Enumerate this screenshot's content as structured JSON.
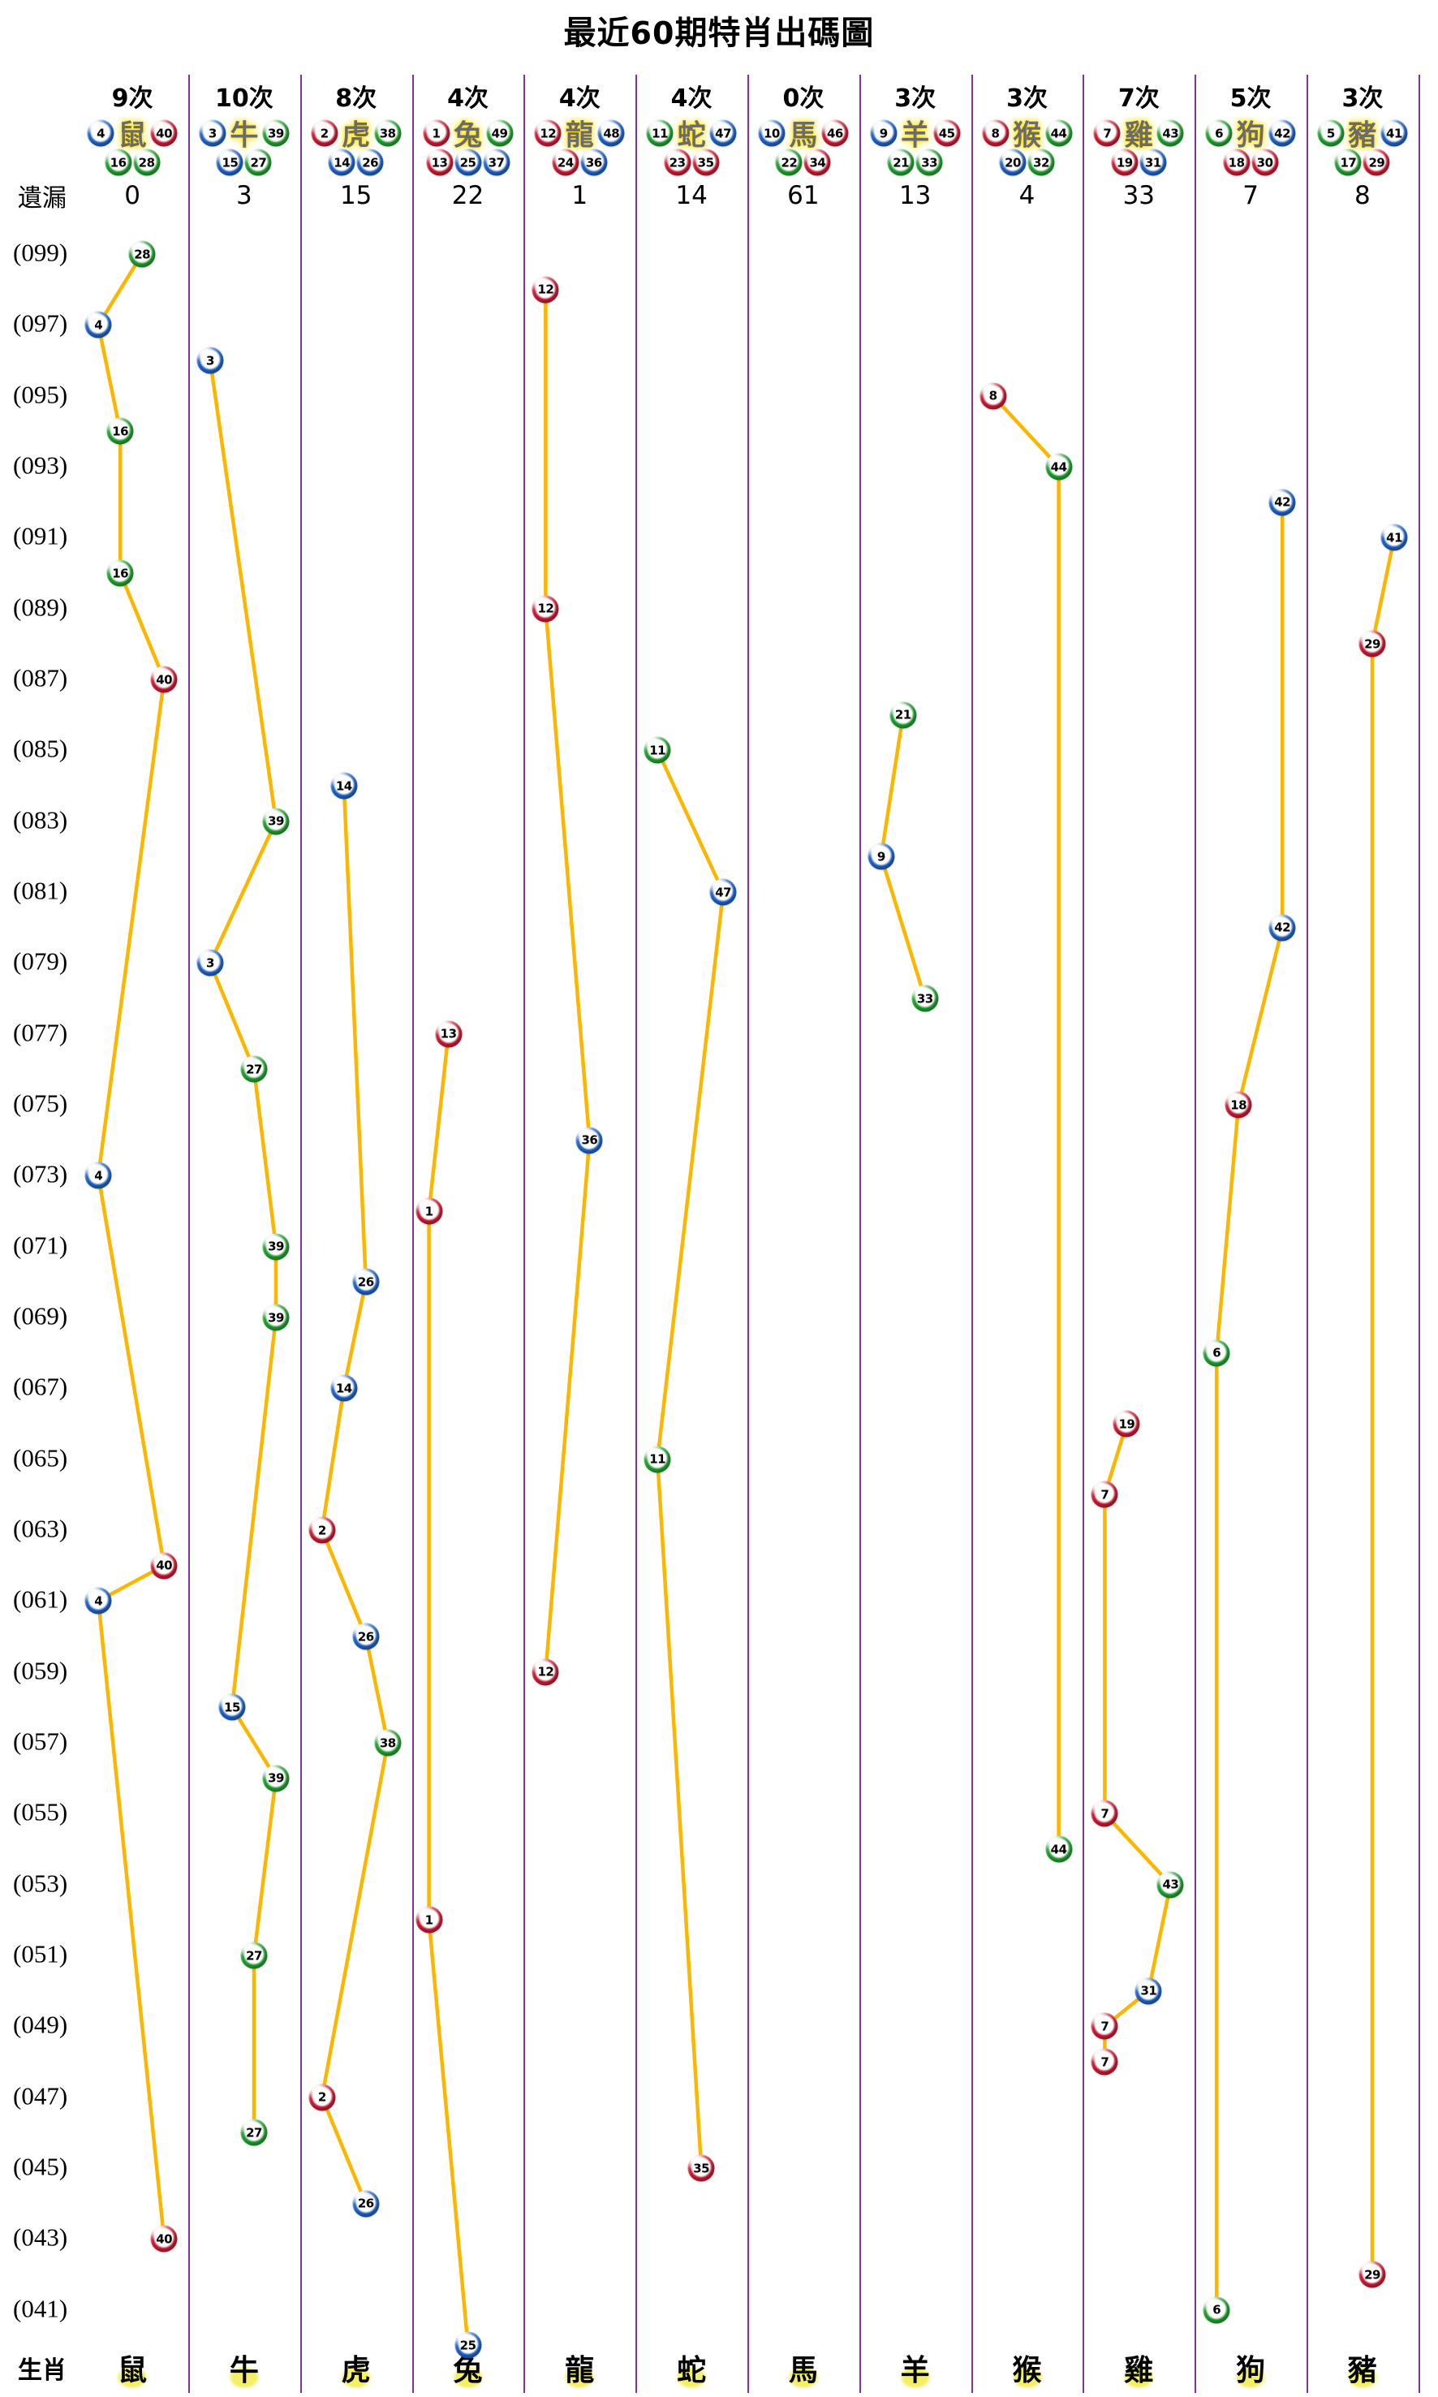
{
  "title": {
    "prefix": "最近",
    "num": "60",
    "suffix": "期特肖出碼圖"
  },
  "gutter": {
    "missed_label": "遺漏",
    "zodiac_label": "生肖"
  },
  "row_labels": [
    "(099)",
    "(097)",
    "(095)",
    "(093)",
    "(091)",
    "(089)",
    "(087)",
    "(085)",
    "(083)",
    "(081)",
    "(079)",
    "(077)",
    "(075)",
    "(073)",
    "(071)",
    "(069)",
    "(067)",
    "(065)",
    "(063)",
    "(061)",
    "(059)",
    "(057)",
    "(055)",
    "(053)",
    "(051)",
    "(049)",
    "(047)",
    "(045)",
    "(043)",
    "(041)"
  ],
  "colors": {
    "line": "#FBB600",
    "separator": "#7B35A0",
    "red": "#CC1A33",
    "blue": "#1E63C8",
    "green": "#1FA12E",
    "red_numbers": [
      1,
      2,
      7,
      8,
      12,
      13,
      18,
      19,
      23,
      24,
      29,
      30,
      34,
      35,
      40,
      45,
      46
    ],
    "blue_numbers": [
      3,
      4,
      9,
      10,
      14,
      15,
      20,
      25,
      26,
      31,
      36,
      37,
      41,
      42,
      47,
      48
    ],
    "green_numbers": [
      5,
      6,
      11,
      16,
      17,
      21,
      22,
      27,
      28,
      32,
      33,
      38,
      39,
      43,
      44,
      49
    ]
  },
  "chart_data": {
    "type": "line",
    "title": "最近60期特肖出碼圖",
    "note": "Per zodiac column: points are {p: period number shown as (0XX) on y-axis, n: drawn ball number}. Periods run 099 (top) down to 040 (bottom); odd periods are labelled. times_label = appearance count in last 60 draws, missed = draws since last appearance.",
    "x_categories": [
      "鼠",
      "牛",
      "虎",
      "兔",
      "龍",
      "蛇",
      "馬",
      "羊",
      "猴",
      "雞",
      "狗",
      "豬"
    ],
    "y_axis": {
      "top_label": "(099)",
      "bottom_label": "(041)",
      "period_range": [
        40,
        99
      ],
      "tick_step": 2
    },
    "legend_position": "none",
    "grid": "vertical-separators-only",
    "series": [
      {
        "zodiac": "鼠",
        "times_label": "9次",
        "missed": "0",
        "numbers": [
          4,
          16,
          28,
          40
        ],
        "points": [
          {
            "p": 99,
            "n": 28
          },
          {
            "p": 97,
            "n": 4
          },
          {
            "p": 94,
            "n": 16
          },
          {
            "p": 90,
            "n": 16
          },
          {
            "p": 87,
            "n": 40
          },
          {
            "p": 73,
            "n": 4
          },
          {
            "p": 62,
            "n": 40
          },
          {
            "p": 61,
            "n": 4
          },
          {
            "p": 43,
            "n": 40
          }
        ]
      },
      {
        "zodiac": "牛",
        "times_label": "10次",
        "missed": "3",
        "numbers": [
          3,
          15,
          27,
          39
        ],
        "points": [
          {
            "p": 96,
            "n": 3
          },
          {
            "p": 83,
            "n": 39
          },
          {
            "p": 79,
            "n": 3
          },
          {
            "p": 76,
            "n": 27
          },
          {
            "p": 71,
            "n": 39
          },
          {
            "p": 69,
            "n": 39
          },
          {
            "p": 58,
            "n": 15
          },
          {
            "p": 56,
            "n": 39
          },
          {
            "p": 51,
            "n": 27
          },
          {
            "p": 46,
            "n": 27
          }
        ]
      },
      {
        "zodiac": "虎",
        "times_label": "8次",
        "missed": "15",
        "numbers": [
          2,
          14,
          26,
          38
        ],
        "points": [
          {
            "p": 84,
            "n": 14
          },
          {
            "p": 70,
            "n": 26
          },
          {
            "p": 67,
            "n": 14
          },
          {
            "p": 63,
            "n": 2
          },
          {
            "p": 60,
            "n": 26
          },
          {
            "p": 57,
            "n": 38
          },
          {
            "p": 47,
            "n": 2
          },
          {
            "p": 44,
            "n": 26
          }
        ]
      },
      {
        "zodiac": "兔",
        "times_label": "4次",
        "missed": "22",
        "numbers": [
          1,
          13,
          25,
          37,
          49
        ],
        "points": [
          {
            "p": 77,
            "n": 13
          },
          {
            "p": 72,
            "n": 1
          },
          {
            "p": 52,
            "n": 1
          },
          {
            "p": 40,
            "n": 25
          }
        ]
      },
      {
        "zodiac": "龍",
        "times_label": "4次",
        "missed": "1",
        "numbers": [
          12,
          24,
          36,
          48
        ],
        "points": [
          {
            "p": 98,
            "n": 12
          },
          {
            "p": 89,
            "n": 12
          },
          {
            "p": 74,
            "n": 36
          },
          {
            "p": 59,
            "n": 12
          }
        ]
      },
      {
        "zodiac": "蛇",
        "times_label": "4次",
        "missed": "14",
        "numbers": [
          11,
          23,
          35,
          47
        ],
        "points": [
          {
            "p": 85,
            "n": 11
          },
          {
            "p": 81,
            "n": 47
          },
          {
            "p": 65,
            "n": 11
          },
          {
            "p": 45,
            "n": 35
          }
        ]
      },
      {
        "zodiac": "馬",
        "times_label": "0次",
        "missed": "61",
        "numbers": [
          10,
          22,
          34,
          46
        ],
        "points": []
      },
      {
        "zodiac": "羊",
        "times_label": "3次",
        "missed": "13",
        "numbers": [
          9,
          21,
          33,
          45
        ],
        "points": [
          {
            "p": 86,
            "n": 21
          },
          {
            "p": 82,
            "n": 9
          },
          {
            "p": 78,
            "n": 33
          }
        ]
      },
      {
        "zodiac": "猴",
        "times_label": "3次",
        "missed": "4",
        "numbers": [
          8,
          20,
          32,
          44
        ],
        "points": [
          {
            "p": 95,
            "n": 8
          },
          {
            "p": 93,
            "n": 44
          },
          {
            "p": 54,
            "n": 44
          }
        ]
      },
      {
        "zodiac": "雞",
        "times_label": "7次",
        "missed": "33",
        "numbers": [
          7,
          19,
          31,
          43
        ],
        "points": [
          {
            "p": 66,
            "n": 19
          },
          {
            "p": 64,
            "n": 7
          },
          {
            "p": 55,
            "n": 7
          },
          {
            "p": 53,
            "n": 43
          },
          {
            "p": 50,
            "n": 31
          },
          {
            "p": 49,
            "n": 7
          },
          {
            "p": 48,
            "n": 7
          }
        ]
      },
      {
        "zodiac": "狗",
        "times_label": "5次",
        "missed": "7",
        "numbers": [
          6,
          18,
          30,
          42
        ],
        "points": [
          {
            "p": 92,
            "n": 42
          },
          {
            "p": 80,
            "n": 42
          },
          {
            "p": 75,
            "n": 18
          },
          {
            "p": 68,
            "n": 6
          },
          {
            "p": 41,
            "n": 6
          }
        ]
      },
      {
        "zodiac": "豬",
        "times_label": "3次",
        "missed": "8",
        "numbers": [
          5,
          17,
          29,
          41
        ],
        "points": [
          {
            "p": 91,
            "n": 41
          },
          {
            "p": 88,
            "n": 29
          },
          {
            "p": 42,
            "n": 29
          }
        ]
      }
    ]
  }
}
